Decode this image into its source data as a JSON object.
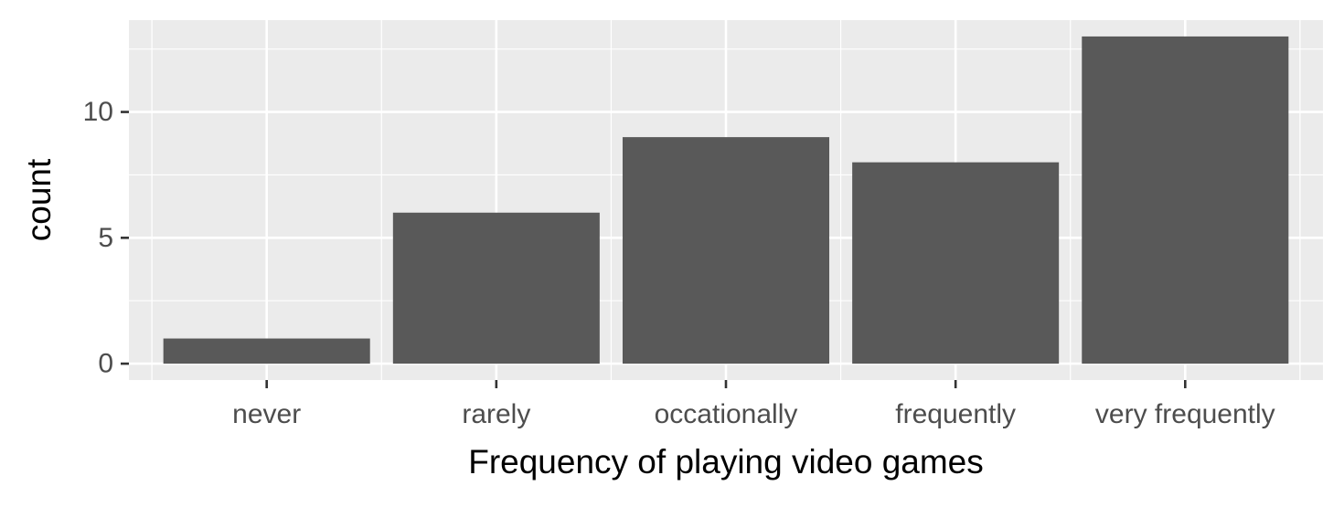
{
  "chart_data": {
    "type": "bar",
    "title": "",
    "xlabel": "Frequency of playing video games",
    "ylabel": "count",
    "categories": [
      "never",
      "rarely",
      "occationally",
      "frequently",
      "very frequently"
    ],
    "values": [
      1,
      6,
      9,
      8,
      13
    ],
    "ylim": [
      -0.65,
      13.65
    ],
    "yticks": [
      0,
      5,
      10
    ],
    "grid": true,
    "legend": "none",
    "colors": {
      "panel_background": "#ebebeb",
      "grid_major": "#ffffff",
      "bar_fill": "#595959",
      "tick_text": "#4d4d4d",
      "axis_title": "#000000",
      "tick_mark": "#333333"
    }
  }
}
